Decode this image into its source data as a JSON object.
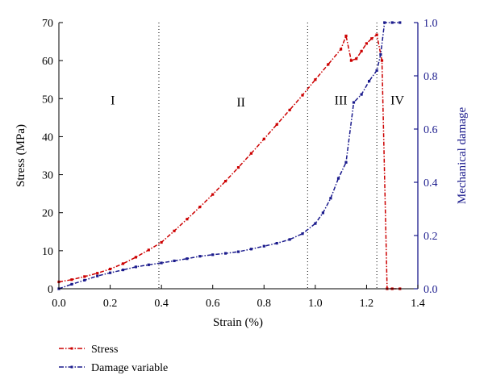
{
  "chart_data": {
    "type": "line",
    "xlabel": "Strain (%)",
    "ylabel": "Stress (MPa)",
    "y2label": "Mechanical damage",
    "xlim": [
      0.0,
      1.4
    ],
    "ylim": [
      0,
      70
    ],
    "y2lim": [
      0.0,
      1.0
    ],
    "xticks": [
      0.0,
      0.2,
      0.4,
      0.6,
      0.8,
      1.0,
      1.2,
      1.4
    ],
    "xticklabels": [
      "0.0",
      "0.2",
      "0.4",
      "0.6",
      "0.8",
      "1.0",
      "1.2",
      "1.4"
    ],
    "yticks": [
      0,
      10,
      20,
      30,
      40,
      50,
      60,
      70
    ],
    "yticklabels": [
      "0",
      "10",
      "20",
      "30",
      "40",
      "50",
      "60",
      "70"
    ],
    "y2ticks": [
      0.0,
      0.2,
      0.4,
      0.6,
      0.8,
      1.0
    ],
    "y2ticklabels": [
      "0.0",
      "0.2",
      "0.4",
      "0.6",
      "0.8",
      "1.0"
    ],
    "grid": false,
    "legend_position": "bottom-left",
    "stage_boundaries": [
      0.39,
      0.97,
      1.24
    ],
    "stage_labels": [
      {
        "text": "I",
        "x": 0.21,
        "y": 49.5
      },
      {
        "text": "II",
        "x": 0.71,
        "y": 49
      },
      {
        "text": "III",
        "x": 1.1,
        "y": 49.5
      },
      {
        "text": "IV",
        "x": 1.32,
        "y": 49.5
      }
    ],
    "colors": {
      "stress": "#cc0000",
      "damage": "#1a1a8c",
      "right_axis": "#1a1a8c"
    },
    "series": [
      {
        "name": "Stress",
        "axis": "left",
        "x": [
          0.0,
          0.05,
          0.1,
          0.15,
          0.2,
          0.25,
          0.3,
          0.35,
          0.4,
          0.45,
          0.5,
          0.55,
          0.6,
          0.65,
          0.7,
          0.75,
          0.8,
          0.85,
          0.9,
          0.95,
          1.0,
          1.05,
          1.1,
          1.12,
          1.14,
          1.16,
          1.18,
          1.2,
          1.22,
          1.24,
          1.26,
          1.28,
          1.3,
          1.33
        ],
        "values": [
          1.8,
          2.4,
          3.2,
          4.1,
          5.2,
          6.6,
          8.3,
          10.2,
          12.2,
          15.2,
          18.3,
          21.5,
          24.8,
          28.3,
          31.9,
          35.6,
          39.4,
          43.2,
          47.0,
          50.9,
          55.0,
          59.0,
          63.0,
          66.5,
          60.0,
          60.5,
          62.5,
          64.5,
          65.8,
          66.8,
          60.0,
          0.0,
          0.0,
          0.0
        ]
      },
      {
        "name": "Damage variable",
        "axis": "right",
        "x": [
          0.0,
          0.05,
          0.1,
          0.15,
          0.2,
          0.25,
          0.3,
          0.35,
          0.4,
          0.45,
          0.5,
          0.55,
          0.6,
          0.65,
          0.7,
          0.75,
          0.8,
          0.85,
          0.9,
          0.95,
          1.0,
          1.03,
          1.06,
          1.09,
          1.12,
          1.15,
          1.18,
          1.21,
          1.24,
          1.255,
          1.27,
          1.3,
          1.33
        ],
        "values": [
          0.0,
          0.017,
          0.032,
          0.048,
          0.06,
          0.071,
          0.082,
          0.09,
          0.097,
          0.105,
          0.113,
          0.122,
          0.128,
          0.133,
          0.139,
          0.149,
          0.16,
          0.171,
          0.185,
          0.207,
          0.245,
          0.285,
          0.34,
          0.415,
          0.475,
          0.7,
          0.73,
          0.78,
          0.82,
          0.88,
          1.0,
          1.0,
          1.0
        ]
      }
    ]
  }
}
